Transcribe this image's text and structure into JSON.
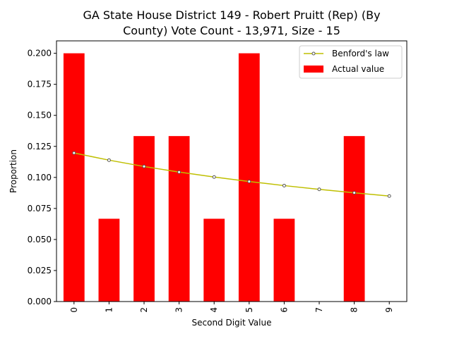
{
  "chart_data": {
    "type": "bar",
    "title_lines": [
      "GA State House District 149 - Robert Pruitt (Rep) (By",
      "County) Vote Count - 13,971, Size - 15"
    ],
    "xlabel": "Second Digit Value",
    "ylabel": "Proportion",
    "categories": [
      "0",
      "1",
      "2",
      "3",
      "4",
      "5",
      "6",
      "7",
      "8",
      "9"
    ],
    "ylim": [
      0,
      0.21
    ],
    "yticks": [
      "0.000",
      "0.025",
      "0.050",
      "0.075",
      "0.100",
      "0.125",
      "0.150",
      "0.175",
      "0.200"
    ],
    "ytick_values": [
      0,
      0.025,
      0.05,
      0.075,
      0.1,
      0.125,
      0.15,
      0.175,
      0.2
    ],
    "grid": false,
    "legend_position": "top-right",
    "series": [
      {
        "name": "Benford's law",
        "kind": "line",
        "color": "#bfbf00",
        "values": [
          0.1197,
          0.1139,
          0.1088,
          0.1043,
          0.1003,
          0.0967,
          0.0934,
          0.0904,
          0.0876,
          0.085
        ]
      },
      {
        "name": "Actual value",
        "kind": "bar",
        "color": "#ff0000",
        "values": [
          0.2,
          0.0667,
          0.1333,
          0.1333,
          0.0667,
          0.2,
          0.0667,
          0,
          0.1333,
          0
        ]
      }
    ]
  }
}
